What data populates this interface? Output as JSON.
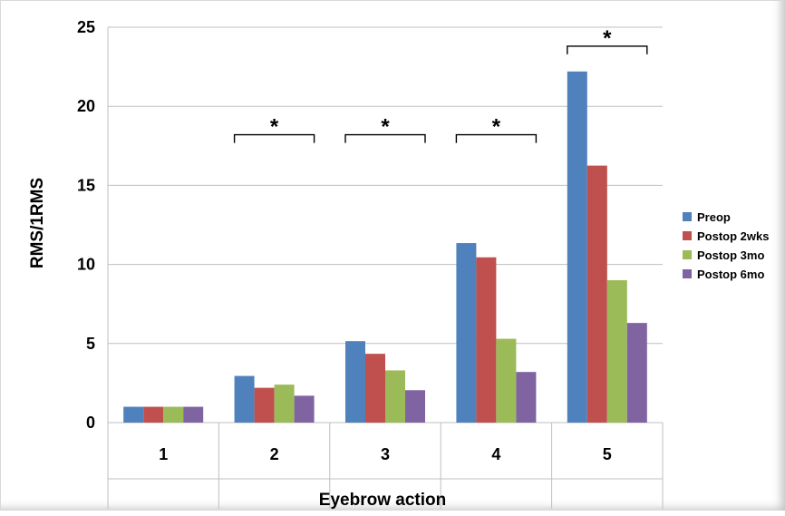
{
  "chart_data": {
    "type": "bar",
    "title": "",
    "xlabel": "Eyebrow action",
    "ylabel": "RMS/1RMS",
    "categories": [
      "1",
      "2",
      "3",
      "4",
      "5"
    ],
    "ylim": [
      0,
      25
    ],
    "yticks": [
      "0",
      "5",
      "10",
      "15",
      "20",
      "25"
    ],
    "grid": true,
    "legend_position": "right",
    "series": [
      {
        "name": "Preop",
        "color": "#4F81BD",
        "values": [
          1.0,
          2.95,
          5.15,
          11.35,
          22.2
        ]
      },
      {
        "name": "Postop  2wks",
        "color": "#C0504D",
        "values": [
          1.0,
          2.2,
          4.35,
          10.45,
          16.25
        ]
      },
      {
        "name": "Postop  3mo",
        "color": "#9BBB59",
        "values": [
          1.0,
          2.4,
          3.3,
          5.3,
          9.0
        ]
      },
      {
        "name": "Postop  6mo",
        "color": "#8064A2",
        "values": [
          1.0,
          1.7,
          2.05,
          3.2,
          6.3
        ]
      }
    ],
    "annotations": [
      {
        "label": "*",
        "category": "2",
        "y": 18.2
      },
      {
        "label": "*",
        "category": "3",
        "y": 18.2
      },
      {
        "label": "*",
        "category": "4",
        "y": 18.2
      },
      {
        "label": "*",
        "category": "5",
        "y": 23.8
      }
    ]
  }
}
